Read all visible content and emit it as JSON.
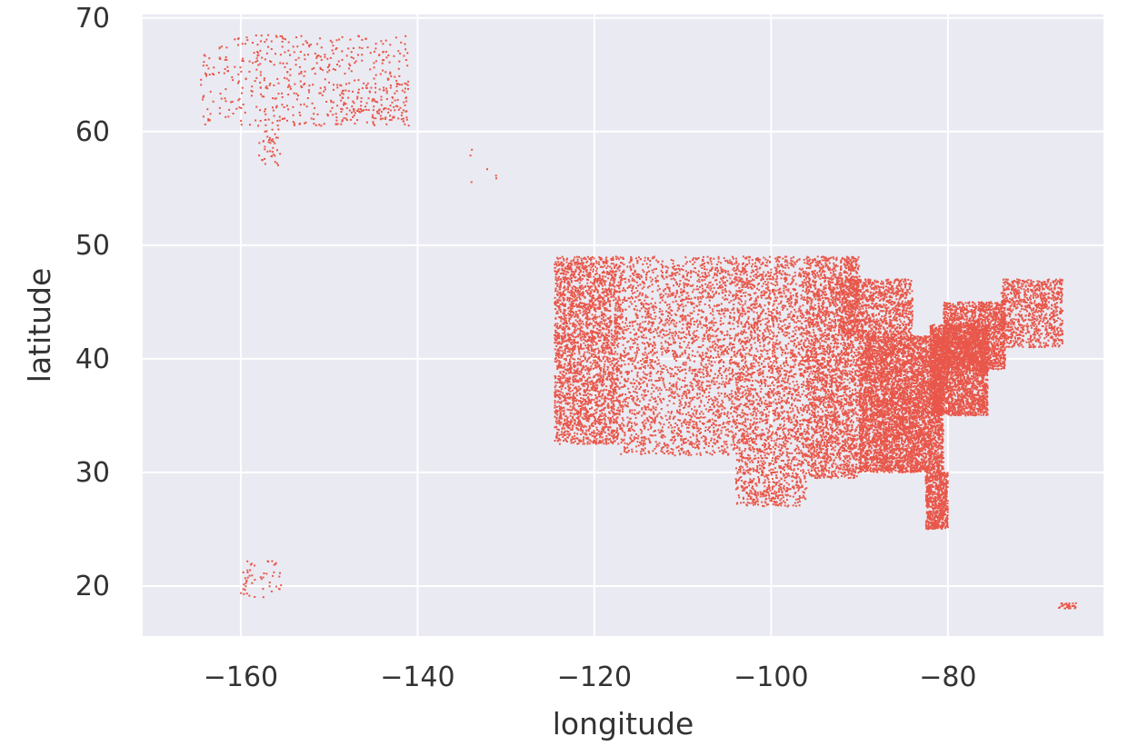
{
  "chart_data": {
    "type": "scatter",
    "title": "",
    "xlabel": "longitude",
    "ylabel": "latitude",
    "xlim": [
      -171.1,
      -62.4
    ],
    "ylim": [
      15.6,
      70.3
    ],
    "xticks": [
      -160,
      -140,
      -120,
      -100,
      -80
    ],
    "xtick_labels": [
      "−160",
      "−140",
      "−120",
      "−100",
      "−80"
    ],
    "yticks": [
      20,
      30,
      40,
      50,
      60,
      70
    ],
    "ytick_labels": [
      "20",
      "30",
      "40",
      "50",
      "60",
      "70"
    ],
    "grid": true,
    "legend": "none",
    "colors": {
      "background": "#eaeaf2",
      "grid": "#ffffff",
      "points": "#e8574a"
    },
    "series": [
      {
        "clusters": [
          {
            "x": [
              -164.5,
              -141.0
            ],
            "y": [
              60.5,
              68.5
            ],
            "n": 520
          },
          {
            "x": [
              -149.0,
              -141.0
            ],
            "y": [
              61.0,
              64.5
            ],
            "n": 90
          },
          {
            "x": [
              -158.0,
              -155.5
            ],
            "y": [
              57.0,
              60.5
            ],
            "n": 40
          },
          {
            "x": [
              -134.5,
              -131.0
            ],
            "y": [
              55.0,
              58.5
            ],
            "n": 6
          },
          {
            "x": [
              -160.0,
              -155.0
            ],
            "y": [
              19.0,
              22.2
            ],
            "n": 50
          },
          {
            "x": [
              -67.5,
              -65.5
            ],
            "y": [
              18.0,
              18.5
            ],
            "n": 30
          },
          {
            "x": [
              -124.5,
              -117.0
            ],
            "y": [
              32.5,
              49.0
            ],
            "n": 2600
          },
          {
            "x": [
              -117.0,
              -104.0
            ],
            "y": [
              31.5,
              49.0
            ],
            "n": 2300
          },
          {
            "x": [
              -104.0,
              -96.0
            ],
            "y": [
              27.0,
              49.0
            ],
            "n": 2400
          },
          {
            "x": [
              -96.0,
              -90.0
            ],
            "y": [
              29.5,
              49.0
            ],
            "n": 2600
          },
          {
            "x": [
              -90.0,
              -80.5
            ],
            "y": [
              30.0,
              42.0
            ],
            "n": 5200
          },
          {
            "x": [
              -92.0,
              -84.0
            ],
            "y": [
              42.0,
              47.0
            ],
            "n": 1000
          },
          {
            "x": [
              -82.0,
              -75.5
            ],
            "y": [
              35.0,
              43.0
            ],
            "n": 2500
          },
          {
            "x": [
              -80.5,
              -73.5
            ],
            "y": [
              39.0,
              45.0
            ],
            "n": 1600
          },
          {
            "x": [
              -74.0,
              -67.0
            ],
            "y": [
              41.0,
              47.0
            ],
            "n": 900
          },
          {
            "x": [
              -82.5,
              -80.0
            ],
            "y": [
              25.0,
              30.0
            ],
            "n": 700
          }
        ]
      }
    ]
  }
}
